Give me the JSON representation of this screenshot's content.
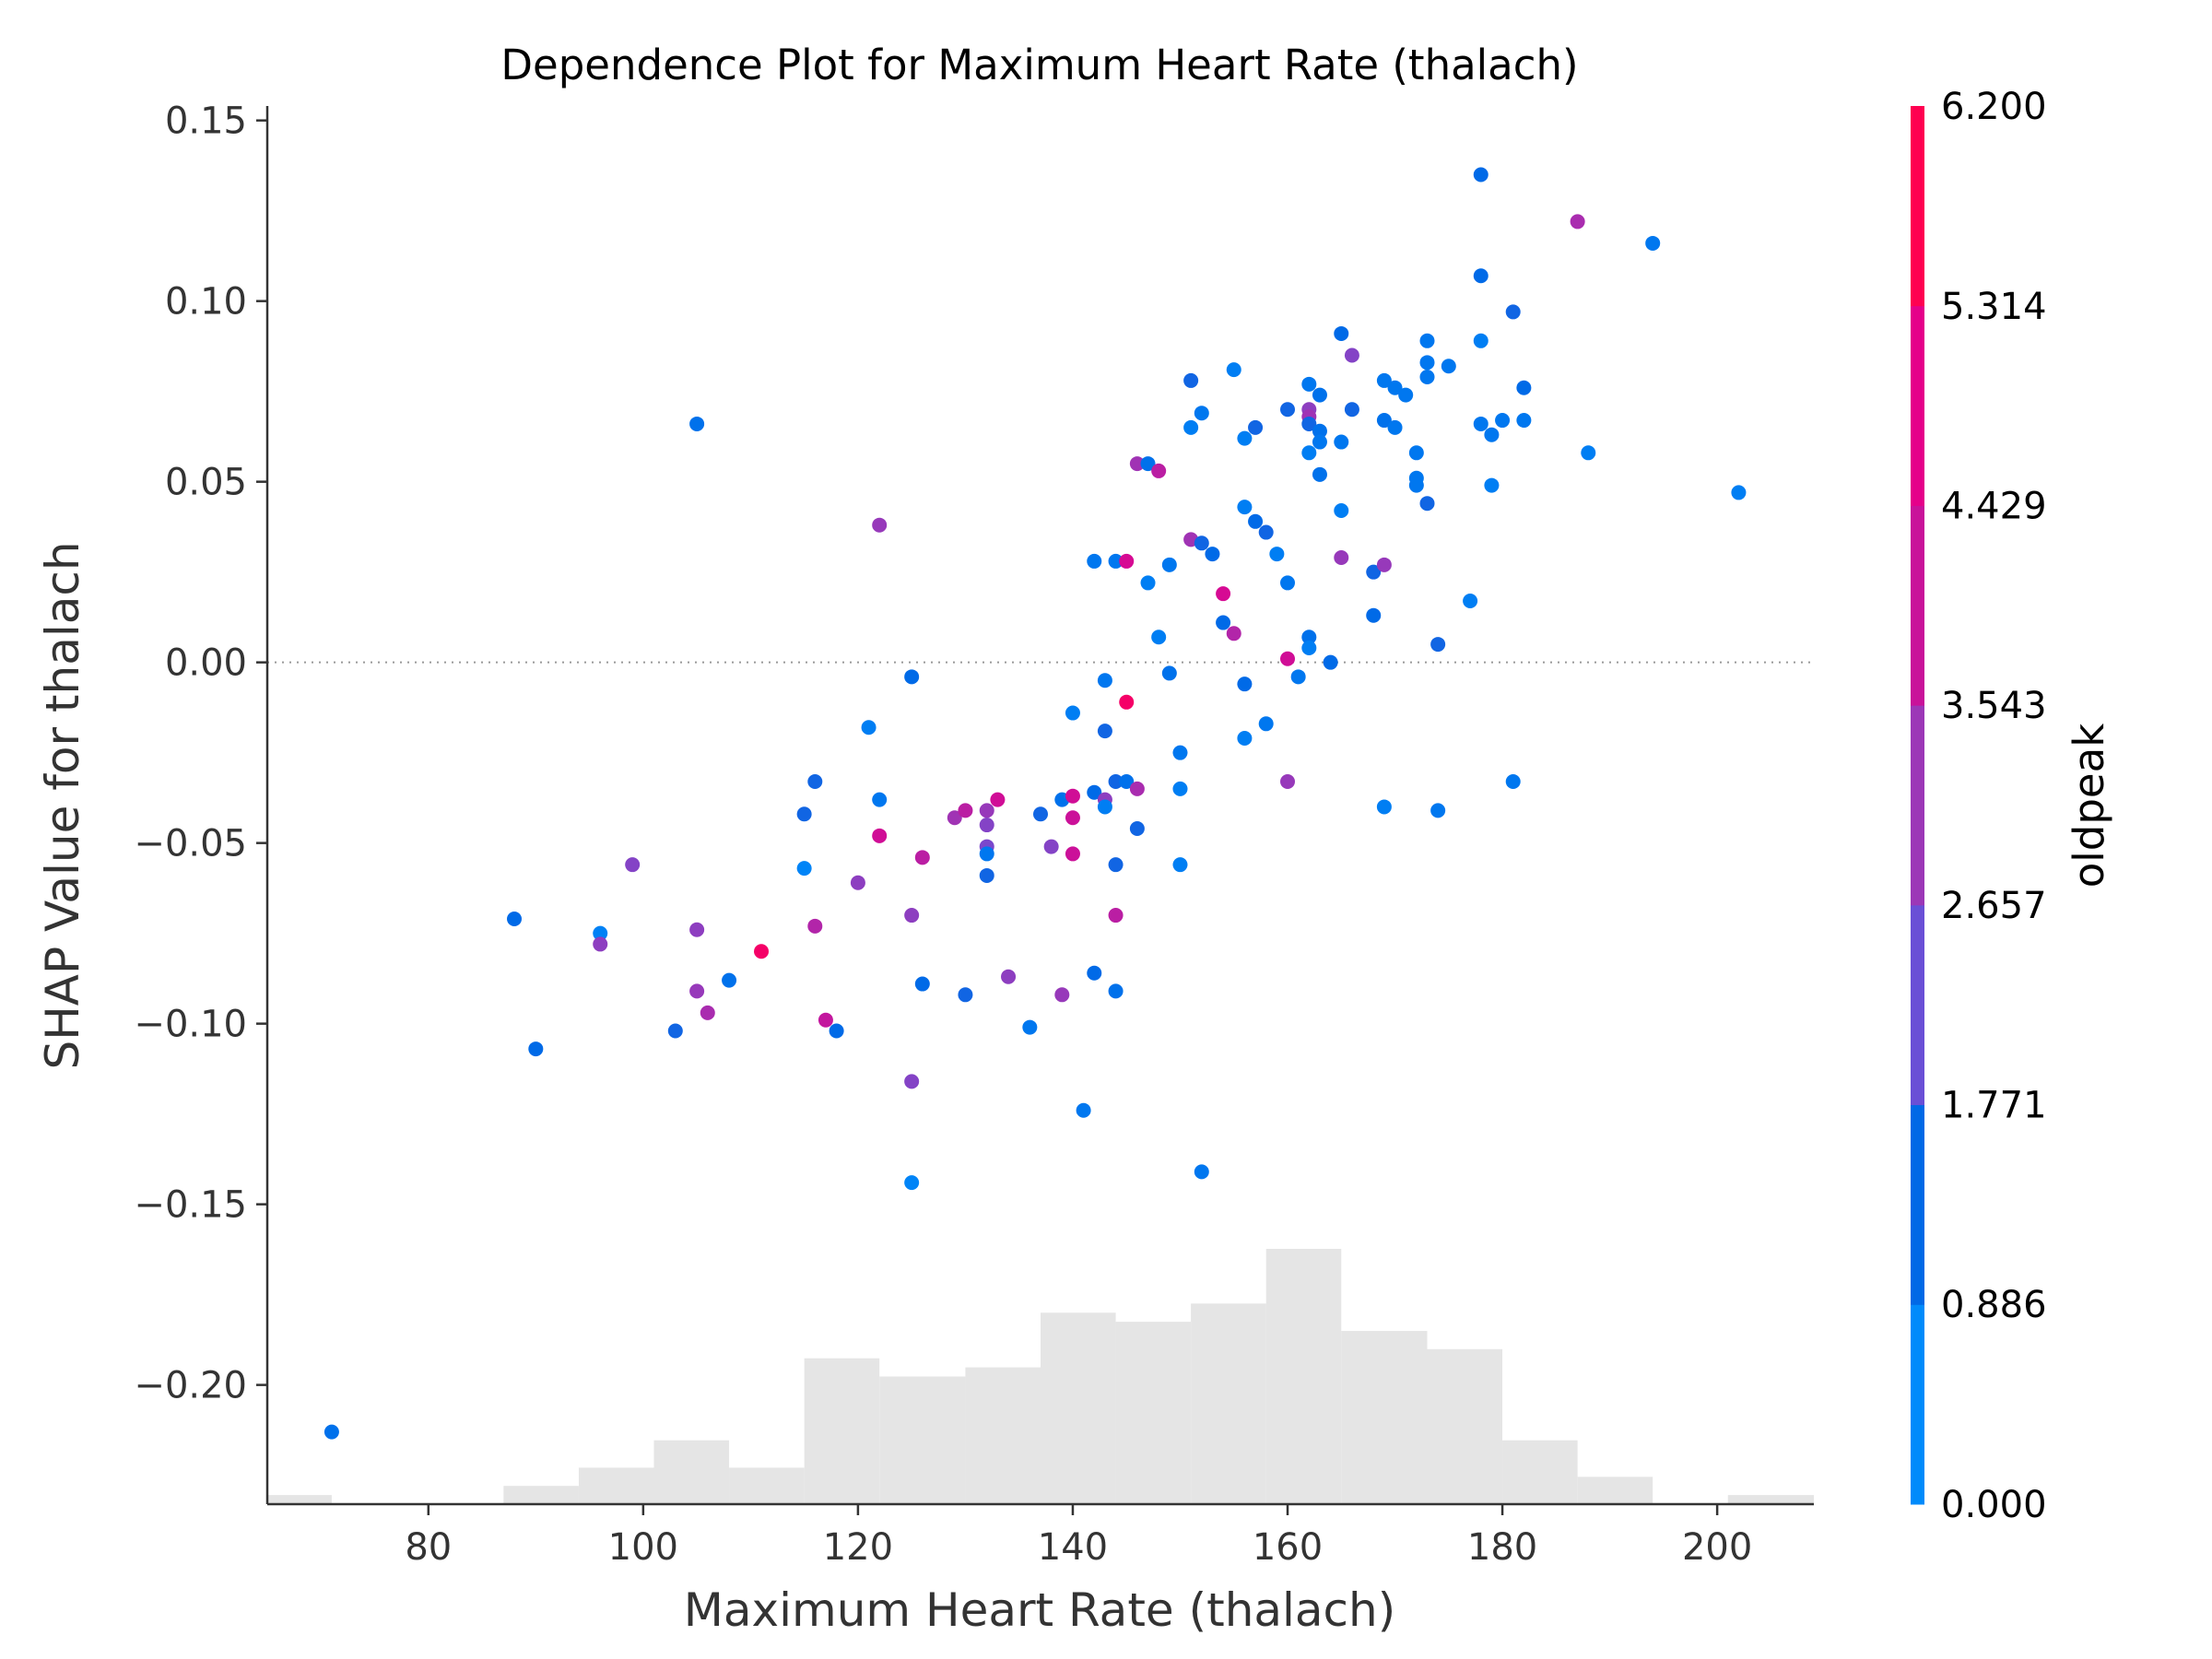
{
  "chart_data": {
    "type": "scatter",
    "title": "Dependence Plot for Maximum Heart Rate (thalach)",
    "xlabel": "Maximum Heart Rate (thalach)",
    "ylabel": "SHAP Value for thalach",
    "xlim": [
      65,
      209
    ],
    "ylim": [
      -0.233,
      0.154
    ],
    "xticks": [
      80,
      100,
      120,
      140,
      160,
      180,
      200
    ],
    "yticks": [
      0.15,
      0.1,
      0.05,
      0.0,
      -0.05,
      -0.1,
      -0.15,
      -0.2
    ],
    "ytick_labels": [
      "0.15",
      "0.10",
      "0.05",
      "0.00",
      "−0.05",
      "−0.10",
      "−0.15",
      "−0.20"
    ],
    "zero_line": true,
    "colorbar": {
      "label": "oldpeak",
      "min": 0.0,
      "max": 6.2,
      "ticks": [
        0.0,
        0.886,
        1.771,
        2.657,
        3.543,
        4.429,
        5.314,
        6.2
      ],
      "tick_labels": [
        "0.000",
        "0.886",
        "1.771",
        "2.657",
        "3.543",
        "4.429",
        "5.314",
        "6.200"
      ],
      "colors": [
        "#008bfb",
        "#0069e6",
        "#6a4fd6",
        "#9c37b7",
        "#c9129a",
        "#e5008a",
        "#ff0051"
      ]
    },
    "histogram": {
      "color": "#e5e5e5",
      "bins": [
        {
          "x0": 65,
          "x1": 71,
          "count": 1
        },
        {
          "x0": 87,
          "x1": 94,
          "count": 2
        },
        {
          "x0": 94,
          "x1": 101,
          "count": 4
        },
        {
          "x0": 101,
          "x1": 108,
          "count": 7
        },
        {
          "x0": 108,
          "x1": 115,
          "count": 4
        },
        {
          "x0": 115,
          "x1": 122,
          "count": 16
        },
        {
          "x0": 122,
          "x1": 130,
          "count": 14
        },
        {
          "x0": 130,
          "x1": 137,
          "count": 15
        },
        {
          "x0": 137,
          "x1": 144,
          "count": 21
        },
        {
          "x0": 144,
          "x1": 151,
          "count": 20
        },
        {
          "x0": 151,
          "x1": 158,
          "count": 22
        },
        {
          "x0": 158,
          "x1": 165,
          "count": 28
        },
        {
          "x0": 165,
          "x1": 173,
          "count": 19
        },
        {
          "x0": 173,
          "x1": 180,
          "count": 17
        },
        {
          "x0": 180,
          "x1": 187,
          "count": 7
        },
        {
          "x0": 187,
          "x1": 194,
          "count": 3
        },
        {
          "x0": 201,
          "x1": 209,
          "count": 1
        }
      ]
    },
    "points": [
      {
        "x": 71,
        "y": -0.213,
        "c": 0.8
      },
      {
        "x": 88,
        "y": -0.071,
        "c": 1.0
      },
      {
        "x": 90,
        "y": -0.107,
        "c": 1.0
      },
      {
        "x": 96,
        "y": -0.075,
        "c": 0.3
      },
      {
        "x": 96,
        "y": -0.078,
        "c": 2.8
      },
      {
        "x": 99,
        "y": -0.056,
        "c": 2.6
      },
      {
        "x": 103,
        "y": -0.102,
        "c": 1.2
      },
      {
        "x": 105,
        "y": 0.066,
        "c": 0.8
      },
      {
        "x": 105,
        "y": -0.074,
        "c": 2.8
      },
      {
        "x": 105,
        "y": -0.091,
        "c": 3.0
      },
      {
        "x": 106,
        "y": -0.097,
        "c": 3.4
      },
      {
        "x": 108,
        "y": -0.088,
        "c": 0.8
      },
      {
        "x": 111,
        "y": -0.08,
        "c": 5.8
      },
      {
        "x": 115,
        "y": -0.042,
        "c": 1.2
      },
      {
        "x": 115,
        "y": -0.057,
        "c": 0.2
      },
      {
        "x": 116,
        "y": -0.033,
        "c": 1.2
      },
      {
        "x": 116,
        "y": -0.073,
        "c": 3.6
      },
      {
        "x": 117,
        "y": -0.099,
        "c": 4.0
      },
      {
        "x": 118,
        "y": -0.102,
        "c": 1.0
      },
      {
        "x": 120,
        "y": -0.061,
        "c": 2.8
      },
      {
        "x": 121,
        "y": -0.018,
        "c": 0.4
      },
      {
        "x": 122,
        "y": 0.038,
        "c": 3.0
      },
      {
        "x": 122,
        "y": -0.038,
        "c": 0.6
      },
      {
        "x": 122,
        "y": -0.048,
        "c": 4.4
      },
      {
        "x": 125,
        "y": -0.004,
        "c": 1.0
      },
      {
        "x": 125,
        "y": -0.07,
        "c": 2.8
      },
      {
        "x": 125,
        "y": -0.116,
        "c": 2.6
      },
      {
        "x": 125,
        "y": -0.144,
        "c": 0.2
      },
      {
        "x": 126,
        "y": -0.054,
        "c": 3.8
      },
      {
        "x": 126,
        "y": -0.089,
        "c": 1.0
      },
      {
        "x": 129,
        "y": -0.043,
        "c": 3.2
      },
      {
        "x": 130,
        "y": -0.041,
        "c": 3.8
      },
      {
        "x": 130,
        "y": -0.092,
        "c": 1.2
      },
      {
        "x": 132,
        "y": -0.041,
        "c": 3.0
      },
      {
        "x": 132,
        "y": -0.045,
        "c": 2.6
      },
      {
        "x": 132,
        "y": -0.051,
        "c": 2.4
      },
      {
        "x": 132,
        "y": -0.053,
        "c": 0.6
      },
      {
        "x": 132,
        "y": -0.059,
        "c": 1.2
      },
      {
        "x": 133,
        "y": -0.038,
        "c": 4.4
      },
      {
        "x": 134,
        "y": -0.087,
        "c": 2.8
      },
      {
        "x": 136,
        "y": -0.101,
        "c": 0.6
      },
      {
        "x": 137,
        "y": -0.042,
        "c": 1.2
      },
      {
        "x": 138,
        "y": -0.051,
        "c": 2.6
      },
      {
        "x": 139,
        "y": -0.038,
        "c": 0.8
      },
      {
        "x": 139,
        "y": -0.092,
        "c": 3.0
      },
      {
        "x": 140,
        "y": -0.014,
        "c": 0.4
      },
      {
        "x": 140,
        "y": -0.037,
        "c": 4.4
      },
      {
        "x": 140,
        "y": -0.043,
        "c": 4.2
      },
      {
        "x": 140,
        "y": -0.053,
        "c": 4.2
      },
      {
        "x": 141,
        "y": -0.124,
        "c": 0.6
      },
      {
        "x": 142,
        "y": 0.028,
        "c": 0.6
      },
      {
        "x": 142,
        "y": -0.036,
        "c": 1.0
      },
      {
        "x": 142,
        "y": -0.086,
        "c": 1.0
      },
      {
        "x": 143,
        "y": -0.005,
        "c": 0.6
      },
      {
        "x": 143,
        "y": -0.019,
        "c": 1.2
      },
      {
        "x": 143,
        "y": -0.038,
        "c": 2.8
      },
      {
        "x": 143,
        "y": -0.04,
        "c": 0.4
      },
      {
        "x": 144,
        "y": 0.028,
        "c": 0.6
      },
      {
        "x": 144,
        "y": -0.033,
        "c": 1.2
      },
      {
        "x": 144,
        "y": -0.056,
        "c": 1.2
      },
      {
        "x": 144,
        "y": -0.07,
        "c": 3.8
      },
      {
        "x": 144,
        "y": -0.091,
        "c": 0.8
      },
      {
        "x": 145,
        "y": 0.028,
        "c": 4.6
      },
      {
        "x": 145,
        "y": -0.011,
        "c": 5.8
      },
      {
        "x": 145,
        "y": -0.033,
        "c": 0.8
      },
      {
        "x": 146,
        "y": 0.055,
        "c": 3.2
      },
      {
        "x": 146,
        "y": -0.035,
        "c": 3.4
      },
      {
        "x": 146,
        "y": -0.046,
        "c": 1.2
      },
      {
        "x": 147,
        "y": 0.055,
        "c": 0.8
      },
      {
        "x": 147,
        "y": 0.022,
        "c": 0.4
      },
      {
        "x": 148,
        "y": 0.053,
        "c": 3.8
      },
      {
        "x": 148,
        "y": 0.007,
        "c": 0.4
      },
      {
        "x": 149,
        "y": 0.027,
        "c": 0.6
      },
      {
        "x": 149,
        "y": -0.003,
        "c": 0.8
      },
      {
        "x": 150,
        "y": -0.025,
        "c": 0.6
      },
      {
        "x": 150,
        "y": -0.035,
        "c": 0.4
      },
      {
        "x": 150,
        "y": -0.056,
        "c": 0.4
      },
      {
        "x": 151,
        "y": 0.078,
        "c": 1.2
      },
      {
        "x": 151,
        "y": 0.065,
        "c": 0.4
      },
      {
        "x": 151,
        "y": 0.034,
        "c": 3.2
      },
      {
        "x": 152,
        "y": 0.069,
        "c": 0.6
      },
      {
        "x": 152,
        "y": 0.033,
        "c": 1.2
      },
      {
        "x": 152,
        "y": -0.141,
        "c": 0.6
      },
      {
        "x": 153,
        "y": 0.03,
        "c": 1.0
      },
      {
        "x": 154,
        "y": 0.019,
        "c": 4.6
      },
      {
        "x": 154,
        "y": 0.011,
        "c": 1.0
      },
      {
        "x": 155,
        "y": 0.081,
        "c": 0.4
      },
      {
        "x": 155,
        "y": 0.008,
        "c": 3.6
      },
      {
        "x": 156,
        "y": 0.062,
        "c": 0.4
      },
      {
        "x": 156,
        "y": 0.043,
        "c": 0.4
      },
      {
        "x": 156,
        "y": -0.006,
        "c": 1.0
      },
      {
        "x": 156,
        "y": -0.021,
        "c": 0.4
      },
      {
        "x": 157,
        "y": 0.065,
        "c": 1.2
      },
      {
        "x": 157,
        "y": 0.039,
        "c": 1.0
      },
      {
        "x": 158,
        "y": 0.036,
        "c": 1.2
      },
      {
        "x": 158,
        "y": -0.017,
        "c": 0.6
      },
      {
        "x": 159,
        "y": 0.03,
        "c": 0.4
      },
      {
        "x": 160,
        "y": 0.07,
        "c": 1.2
      },
      {
        "x": 160,
        "y": 0.022,
        "c": 0.6
      },
      {
        "x": 160,
        "y": 0.001,
        "c": 4.4
      },
      {
        "x": 160,
        "y": -0.033,
        "c": 3.0
      },
      {
        "x": 161,
        "y": -0.004,
        "c": 0.6
      },
      {
        "x": 162,
        "y": 0.077,
        "c": 0.6
      },
      {
        "x": 162,
        "y": 0.07,
        "c": 2.8
      },
      {
        "x": 162,
        "y": 0.068,
        "c": 3.2
      },
      {
        "x": 162,
        "y": 0.066,
        "c": 1.2
      },
      {
        "x": 162,
        "y": 0.058,
        "c": 0.4
      },
      {
        "x": 162,
        "y": 0.007,
        "c": 0.8
      },
      {
        "x": 162,
        "y": 0.004,
        "c": 0.4
      },
      {
        "x": 163,
        "y": 0.074,
        "c": 0.8
      },
      {
        "x": 163,
        "y": 0.064,
        "c": 0.8
      },
      {
        "x": 163,
        "y": 0.061,
        "c": 0.6
      },
      {
        "x": 163,
        "y": 0.052,
        "c": 0.8
      },
      {
        "x": 164,
        "y": 0.0,
        "c": 1.0
      },
      {
        "x": 165,
        "y": 0.091,
        "c": 1.0
      },
      {
        "x": 165,
        "y": 0.061,
        "c": 0.6
      },
      {
        "x": 165,
        "y": 0.042,
        "c": 0.4
      },
      {
        "x": 165,
        "y": 0.029,
        "c": 3.0
      },
      {
        "x": 166,
        "y": 0.085,
        "c": 2.6
      },
      {
        "x": 166,
        "y": 0.07,
        "c": 1.2
      },
      {
        "x": 168,
        "y": 0.025,
        "c": 1.2
      },
      {
        "x": 168,
        "y": 0.013,
        "c": 1.0
      },
      {
        "x": 169,
        "y": 0.078,
        "c": 0.6
      },
      {
        "x": 169,
        "y": 0.067,
        "c": 0.8
      },
      {
        "x": 169,
        "y": 0.027,
        "c": 3.0
      },
      {
        "x": 169,
        "y": -0.04,
        "c": 0.4
      },
      {
        "x": 170,
        "y": 0.076,
        "c": 0.6
      },
      {
        "x": 170,
        "y": 0.065,
        "c": 0.6
      },
      {
        "x": 171,
        "y": 0.074,
        "c": 0.6
      },
      {
        "x": 172,
        "y": 0.058,
        "c": 0.6
      },
      {
        "x": 172,
        "y": 0.051,
        "c": 0.6
      },
      {
        "x": 172,
        "y": 0.049,
        "c": 0.6
      },
      {
        "x": 173,
        "y": 0.089,
        "c": 0.6
      },
      {
        "x": 173,
        "y": 0.083,
        "c": 0.6
      },
      {
        "x": 173,
        "y": 0.079,
        "c": 0.6
      },
      {
        "x": 173,
        "y": 0.044,
        "c": 1.2
      },
      {
        "x": 174,
        "y": 0.005,
        "c": 1.2
      },
      {
        "x": 174,
        "y": -0.041,
        "c": 0.6
      },
      {
        "x": 175,
        "y": 0.082,
        "c": 0.6
      },
      {
        "x": 177,
        "y": 0.017,
        "c": 0.4
      },
      {
        "x": 178,
        "y": 0.135,
        "c": 1.0
      },
      {
        "x": 178,
        "y": 0.107,
        "c": 1.0
      },
      {
        "x": 178,
        "y": 0.089,
        "c": 0.4
      },
      {
        "x": 178,
        "y": 0.066,
        "c": 0.6
      },
      {
        "x": 179,
        "y": 0.063,
        "c": 0.6
      },
      {
        "x": 179,
        "y": 0.049,
        "c": 0.4
      },
      {
        "x": 180,
        "y": 0.067,
        "c": 0.6
      },
      {
        "x": 181,
        "y": 0.097,
        "c": 1.2
      },
      {
        "x": 181,
        "y": -0.033,
        "c": 0.6
      },
      {
        "x": 182,
        "y": 0.076,
        "c": 1.0
      },
      {
        "x": 182,
        "y": 0.067,
        "c": 0.6
      },
      {
        "x": 187,
        "y": 0.122,
        "c": 3.4
      },
      {
        "x": 188,
        "y": 0.058,
        "c": 0.4
      },
      {
        "x": 194,
        "y": 0.116,
        "c": 0.6
      },
      {
        "x": 202,
        "y": 0.047,
        "c": 0.4
      }
    ]
  }
}
